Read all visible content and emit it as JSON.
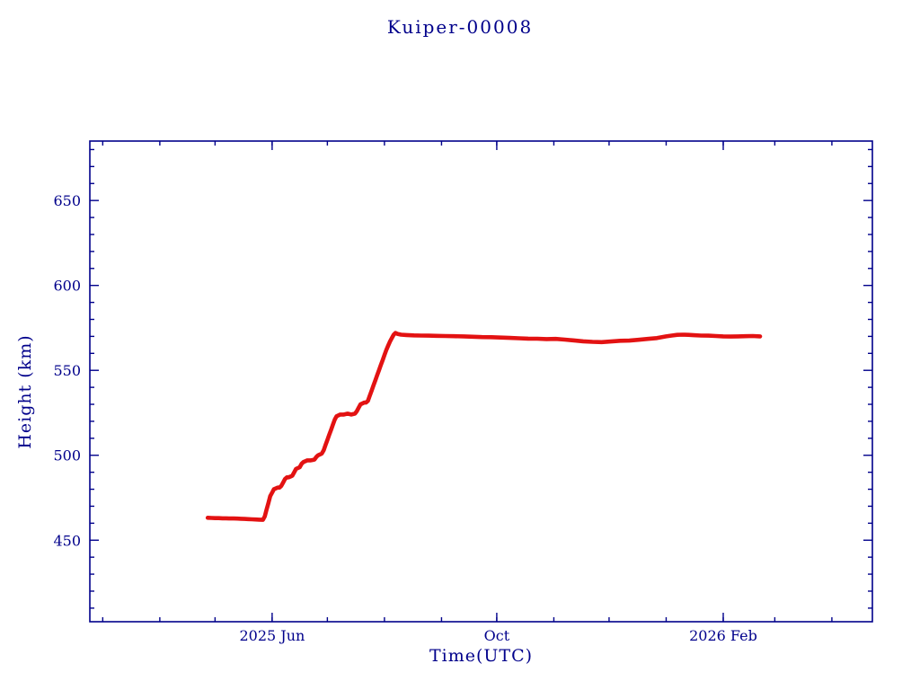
{
  "chart_data": {
    "type": "scatter",
    "title": "Kuiper-00008",
    "xlabel": "Time(UTC)",
    "ylabel": "Height (km)",
    "x_unit": "days since 2025-01-01",
    "xlim": [
      52,
      477
    ],
    "ylim": [
      402,
      685
    ],
    "grid": false,
    "legend": "none",
    "x_major_ticks": [
      {
        "day": 151,
        "label": "2025 Jun"
      },
      {
        "day": 273,
        "label": "Oct"
      },
      {
        "day": 396,
        "label": "2026 Feb"
      }
    ],
    "x_minor_ticks": [
      59,
      90,
      120,
      151,
      181,
      212,
      243,
      273,
      304,
      334,
      365,
      396,
      424,
      455
    ],
    "y_major_ticks": [
      450,
      500,
      550,
      600,
      650
    ],
    "y_minor_step": 10,
    "colors": {
      "axis": "#00008b",
      "text": "#00008b",
      "data": "#e31212",
      "fit": "#2ab5b5",
      "background": "#ffffff"
    },
    "fit_range_days": [
      146,
      220
    ],
    "series": [
      {
        "name": "height",
        "points": [
          [
            116,
            463.2
          ],
          [
            118,
            463.1
          ],
          [
            120,
            463.0
          ],
          [
            122,
            463.0
          ],
          [
            124,
            462.9
          ],
          [
            126,
            462.9
          ],
          [
            128,
            462.8
          ],
          [
            130,
            462.8
          ],
          [
            132,
            462.7
          ],
          [
            134,
            462.6
          ],
          [
            136,
            462.5
          ],
          [
            138,
            462.4
          ],
          [
            140,
            462.3
          ],
          [
            142,
            462.2
          ],
          [
            144,
            462.1
          ],
          [
            146,
            462.0
          ],
          [
            147,
            464
          ],
          [
            148,
            468
          ],
          [
            149,
            472
          ],
          [
            150,
            476
          ],
          [
            151,
            478
          ],
          [
            152,
            480
          ],
          [
            153,
            480.5
          ],
          [
            154,
            481
          ],
          [
            155,
            481
          ],
          [
            156,
            482
          ],
          [
            157,
            484
          ],
          [
            158,
            486
          ],
          [
            159,
            487
          ],
          [
            160,
            487
          ],
          [
            161,
            487.5
          ],
          [
            162,
            488
          ],
          [
            163,
            490
          ],
          [
            164,
            492
          ],
          [
            165,
            492.5
          ],
          [
            166,
            493
          ],
          [
            167,
            495
          ],
          [
            168,
            496
          ],
          [
            169,
            496.5
          ],
          [
            170,
            497
          ],
          [
            171,
            497
          ],
          [
            172,
            497
          ],
          [
            173,
            497.2
          ],
          [
            174,
            497.5
          ],
          [
            175,
            499
          ],
          [
            176,
            500
          ],
          [
            177,
            500.5
          ],
          [
            178,
            501
          ],
          [
            179,
            503
          ],
          [
            180,
            506
          ],
          [
            181,
            509
          ],
          [
            182,
            512
          ],
          [
            183,
            515
          ],
          [
            184,
            518
          ],
          [
            185,
            521
          ],
          [
            186,
            523
          ],
          [
            187,
            523.5
          ],
          [
            188,
            524
          ],
          [
            190,
            524
          ],
          [
            192,
            524.5
          ],
          [
            194,
            524
          ],
          [
            196,
            524.5
          ],
          [
            197,
            526
          ],
          [
            198,
            528
          ],
          [
            199,
            530
          ],
          [
            200,
            530.5
          ],
          [
            201,
            531
          ],
          [
            202,
            531
          ],
          [
            203,
            532
          ],
          [
            204,
            535
          ],
          [
            205,
            538
          ],
          [
            206,
            541
          ],
          [
            207,
            544
          ],
          [
            208,
            547
          ],
          [
            209,
            550
          ],
          [
            210,
            553
          ],
          [
            211,
            556
          ],
          [
            212,
            559
          ],
          [
            213,
            562
          ],
          [
            214,
            564.5
          ],
          [
            215,
            567
          ],
          [
            216,
            569
          ],
          [
            217,
            571
          ],
          [
            218,
            572
          ],
          [
            219,
            571.5
          ],
          [
            221,
            571
          ],
          [
            224,
            570.8
          ],
          [
            228,
            570.6
          ],
          [
            232,
            570.5
          ],
          [
            236,
            570.4
          ],
          [
            240,
            570.3
          ],
          [
            245,
            570.2
          ],
          [
            250,
            570.1
          ],
          [
            255,
            570.0
          ],
          [
            260,
            569.8
          ],
          [
            265,
            569.6
          ],
          [
            270,
            569.5
          ],
          [
            275,
            569.3
          ],
          [
            280,
            569.1
          ],
          [
            285,
            568.9
          ],
          [
            290,
            568.7
          ],
          [
            295,
            568.6
          ],
          [
            300,
            568.4
          ],
          [
            305,
            568.5
          ],
          [
            310,
            568.1
          ],
          [
            315,
            567.6
          ],
          [
            320,
            567.1
          ],
          [
            325,
            566.8
          ],
          [
            330,
            566.6
          ],
          [
            335,
            567.0
          ],
          [
            340,
            567.4
          ],
          [
            345,
            567.5
          ],
          [
            350,
            568.0
          ],
          [
            355,
            568.5
          ],
          [
            360,
            569.0
          ],
          [
            365,
            570.0
          ],
          [
            368,
            570.5
          ],
          [
            371,
            570.9
          ],
          [
            374,
            571.0
          ],
          [
            377,
            570.9
          ],
          [
            380,
            570.7
          ],
          [
            384,
            570.5
          ],
          [
            388,
            570.4
          ],
          [
            392,
            570.2
          ],
          [
            396,
            570.0
          ],
          [
            400,
            569.9
          ],
          [
            404,
            570.0
          ],
          [
            408,
            570.1
          ],
          [
            412,
            570.2
          ],
          [
            416,
            570.0
          ]
        ]
      }
    ]
  }
}
